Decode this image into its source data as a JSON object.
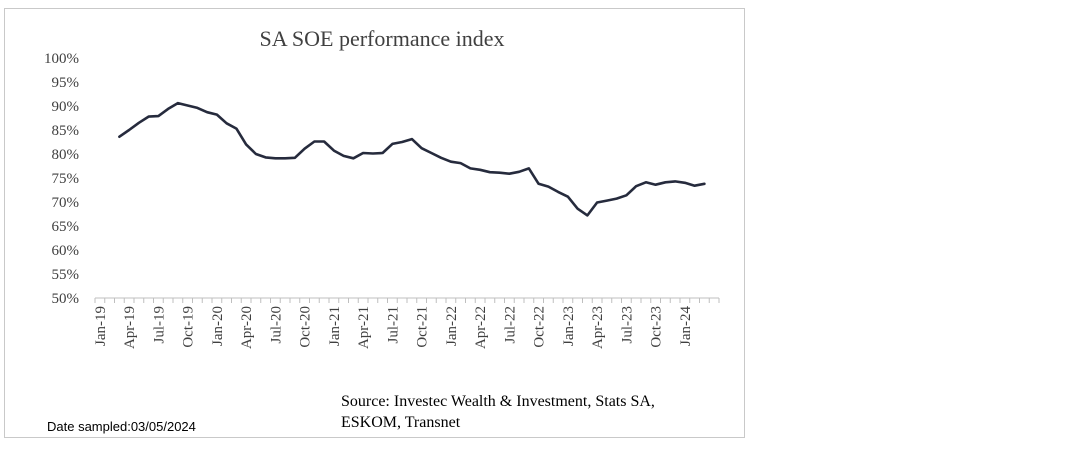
{
  "chart_data": {
    "type": "line",
    "title": "SA SOE performance index",
    "xlabel": "",
    "ylabel": "",
    "ylim": [
      50,
      100
    ],
    "yticks": [
      "50%",
      "55%",
      "60%",
      "65%",
      "70%",
      "75%",
      "80%",
      "85%",
      "90%",
      "95%",
      "100%"
    ],
    "xticks": [
      "Jan-19",
      "Apr-19",
      "Jul-19",
      "Oct-19",
      "Jan-20",
      "Apr-20",
      "Jul-20",
      "Oct-20",
      "Jan-21",
      "Apr-21",
      "Jul-21",
      "Oct-21",
      "Jan-22",
      "Apr-22",
      "Jul-22",
      "Oct-22",
      "Jan-23",
      "Apr-23",
      "Jul-23",
      "Oct-23",
      "Jan-24"
    ],
    "grid": false,
    "legend": "none",
    "series": [
      {
        "name": "SA SOE performance index",
        "color": "#262b3d",
        "start_month_index": 2,
        "values": [
          83.6,
          85.0,
          86.5,
          87.8,
          87.9,
          89.4,
          90.6,
          90.1,
          89.6,
          88.7,
          88.2,
          86.4,
          85.3,
          82.0,
          80.0,
          79.3,
          79.1,
          79.1,
          79.2,
          81.1,
          82.6,
          82.6,
          80.7,
          79.6,
          79.1,
          80.2,
          80.1,
          80.2,
          82.1,
          82.5,
          83.1,
          81.2,
          80.2,
          79.2,
          78.4,
          78.1,
          77.0,
          76.7,
          76.2,
          76.1,
          75.9,
          76.3,
          77.0,
          73.8,
          73.2,
          72.1,
          71.1,
          68.6,
          67.2,
          69.9,
          70.3,
          70.7,
          71.4,
          73.3,
          74.1,
          73.6,
          74.1,
          74.3,
          74.0,
          73.4,
          73.8
        ]
      }
    ]
  },
  "footer": {
    "source_line1": "Source: Investec Wealth & Investment, Stats SA,",
    "source_line2": "ESKOM, Transnet",
    "date_sampled": "Date sampled:03/05/2024"
  }
}
